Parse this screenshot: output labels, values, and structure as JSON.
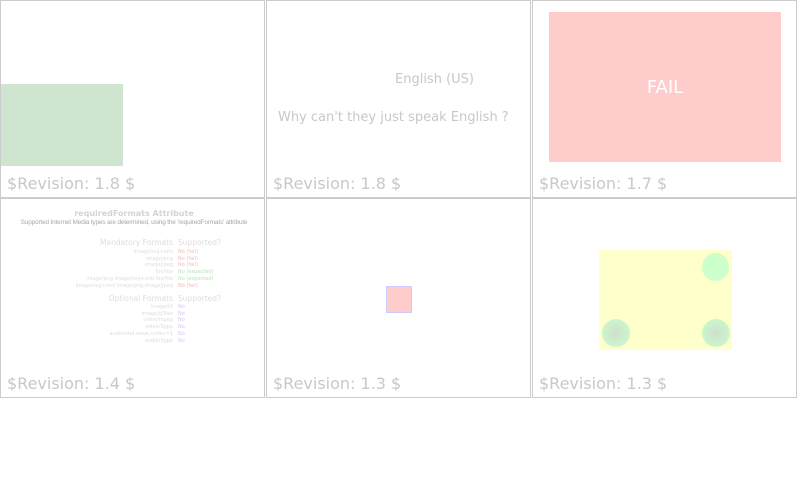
{
  "cells": [
    {
      "revision": "$Revision: 1.8 $"
    },
    {
      "revision": "$Revision: 1.8 $",
      "language": "English (US)",
      "question": "Why can't they just speak English ?"
    },
    {
      "revision": "$Revision: 1.7 $",
      "fail_label": "FAIL"
    },
    {
      "revision": "$Revision: 1.4 $",
      "title": "requiredFormats Attribute",
      "subtitle": "Supported Internet Media types are determined, using the 'requiredFormats' attribute",
      "mandatory_header": "Mandatory Formats",
      "supported_header": "Supported?",
      "mandatory": [
        {
          "format": "image/svg+xml",
          "result": "No (fail)"
        },
        {
          "format": "image/png",
          "result": "No (fail)"
        },
        {
          "format": "image/jpeg",
          "result": "No (fail)"
        },
        {
          "format": "foo/foo",
          "result": "No (expected)"
        },
        {
          "format": "image/png image/svg+xml foo/foo",
          "result": "No (expected)"
        },
        {
          "format": "image/svg+xml image/png image/jpeg",
          "result": "No (fail)"
        }
      ],
      "optional_header": "Optional Formats",
      "supported_header2": "Supported?",
      "optional": [
        {
          "format": "image/tif",
          "result": "No"
        },
        {
          "format": "image/g3fax",
          "result": "No"
        },
        {
          "format": "video/mpeg",
          "result": "No"
        },
        {
          "format": "video/3gpp",
          "result": "No"
        },
        {
          "format": "audio/vnd.wave;codec=1",
          "result": "No"
        },
        {
          "format": "audio/3gpp",
          "result": "No"
        }
      ]
    },
    {
      "revision": "$Revision: 1.3 $"
    },
    {
      "revision": "$Revision: 1.3 $"
    }
  ],
  "colors": {
    "fail": "#f7b9b9",
    "expected": "#b9e3b9",
    "optional": "#d9c3f2",
    "green_rect": "#d0e5d0",
    "fail_box": "#ffcccc",
    "yellow": "#ffffcc",
    "circle": "#ccffcc"
  }
}
